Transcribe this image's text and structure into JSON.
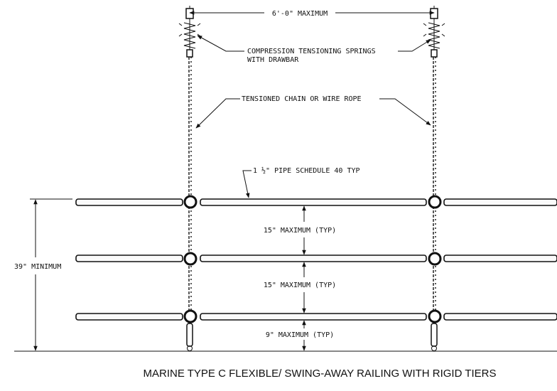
{
  "labels": {
    "top_dimension": "6'-0\" MAXIMUM",
    "springs_line1": "COMPRESSION TENSIONING SPRINGS",
    "springs_line2": "WITH DRAWBAR",
    "chain": "TENSIONED CHAIN OR WIRE ROPE",
    "pipe": "1 ½\" PIPE SCHEDULE 40 TYP",
    "gap_upper": "15\" MAXIMUM (TYP)",
    "gap_middle": "15\" MAXIMUM (TYP)",
    "gap_bottom": "9\" MAXIMUM (TYP)",
    "overall_height": "39\" MINIMUM"
  },
  "caption": "MARINE TYPE C FLEXIBLE/ SWING-AWAY RAILING WITH RIGID TIERS"
}
